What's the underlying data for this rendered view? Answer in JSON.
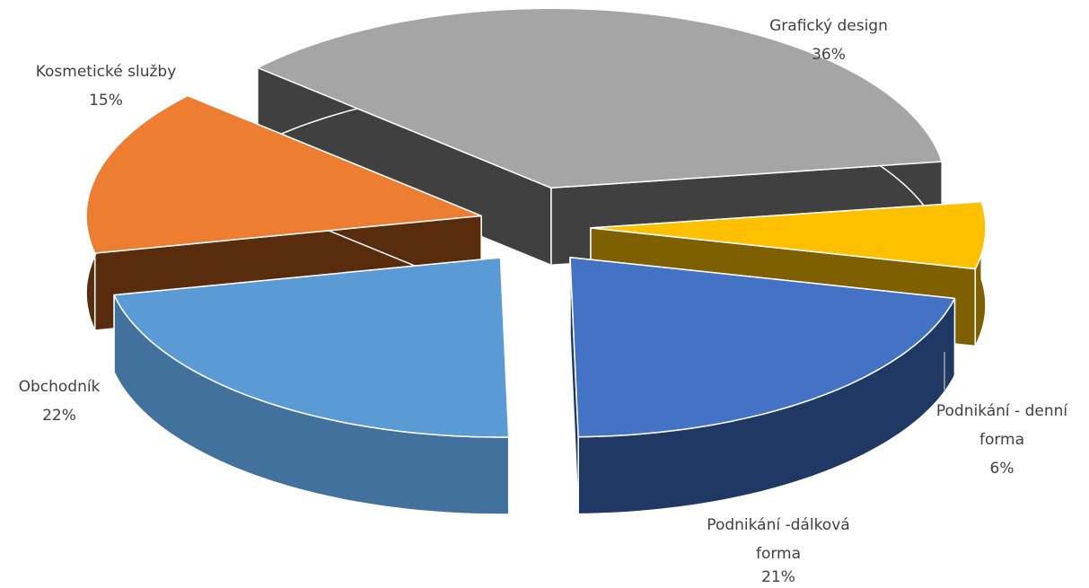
{
  "chart_data": {
    "type": "pie",
    "style": "3d-exploded",
    "title": "",
    "slices": [
      {
        "name": "Grafický design",
        "value": 36,
        "label_lines": [
          "Grafický design"
        ],
        "pct_label": "36%",
        "color": "#a5a5a5",
        "side_color": "#404040"
      },
      {
        "name": "Podnikání - denní forma",
        "value": 6,
        "label_lines": [
          "Podnikání - denní",
          "forma"
        ],
        "pct_label": "6%",
        "color": "#ffc000",
        "side_color": "#7f6000"
      },
      {
        "name": "Podnikání -dálková forma",
        "value": 21,
        "label_lines": [
          "Podnikání -dálková",
          "forma"
        ],
        "pct_label": "21%",
        "color": "#4472c4",
        "side_color": "#1f3864"
      },
      {
        "name": "Obchodník",
        "value": 22,
        "label_lines": [
          "Obchodník"
        ],
        "pct_label": "22%",
        "color": "#5b9bd5",
        "side_color": "#41719c"
      },
      {
        "name": "Kosmetické služby",
        "value": 15,
        "label_lines": [
          "Kosmetické služby"
        ],
        "pct_label": "15%",
        "color": "#ed7d31",
        "side_color": "#5a2c0e"
      }
    ]
  }
}
